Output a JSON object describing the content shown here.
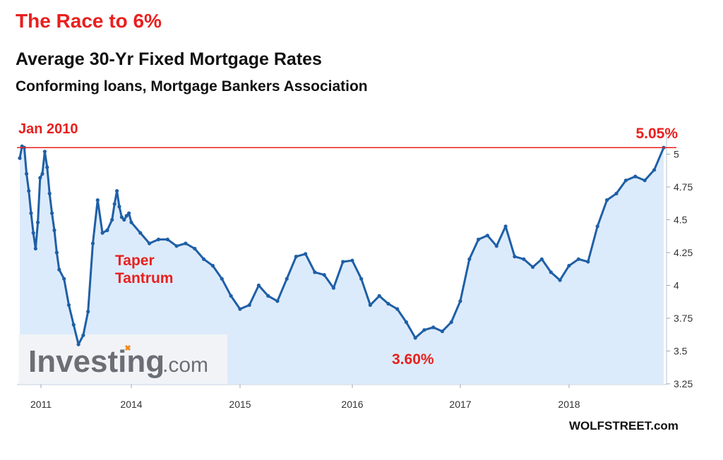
{
  "header": {
    "headline": "The Race to 6%",
    "title": "Average 30-Yr Fixed Mortgage Rates",
    "subtitle": "Conforming loans, Mortgage Bankers Association"
  },
  "credit": "WOLFSTREET.com",
  "colors": {
    "headline": "#e8201e",
    "line": "#1f5fa6",
    "area": "#dcebfb",
    "annotation": "#e8201e"
  },
  "chart_data": {
    "type": "area",
    "xlabel": "",
    "ylabel": "",
    "ylim": [
      3.25,
      5.05
    ],
    "yticks": [
      3.25,
      3.5,
      3.75,
      4,
      4.25,
      4.5,
      4.75,
      5
    ],
    "ytick_labels": [
      "3.25",
      "3.5",
      "3.75",
      "4",
      "4.25",
      "4.5",
      "4.75",
      "5"
    ],
    "xticks": [
      "2011",
      "2014",
      "2015",
      "2016",
      "2017",
      "2018"
    ],
    "grid": false,
    "reference_line": {
      "value": 5.05,
      "label": "5.05%"
    },
    "annotations": [
      {
        "text": "Jan 2010",
        "at": "2010-01",
        "y": 5.06
      },
      {
        "text": "Taper",
        "at": "2013-06",
        "y": 4.15
      },
      {
        "text": "Tantrum",
        "at": "2013-06",
        "y": 4.03
      },
      {
        "text": "3.60%",
        "at": "2016-07",
        "y": 3.6
      }
    ],
    "watermark": {
      "brand": "Investing",
      "suffix": ".com"
    },
    "series": [
      {
        "x": [
          "2010-01",
          "2010-02",
          "2010-03",
          "2010-04",
          "2010-05",
          "2010-06",
          "2010-07",
          "2010-08",
          "2010-09",
          "2010-10",
          "2010-11",
          "2010-12",
          "2011-01",
          "2011-02",
          "2011-03",
          "2011-04",
          "2011-05",
          "2011-06",
          "2011-08",
          "2011-10",
          "2011-12",
          "2012-02",
          "2012-04",
          "2012-06",
          "2012-08",
          "2012-10",
          "2012-12",
          "2013-02",
          "2013-04",
          "2013-05",
          "2013-06",
          "2013-07",
          "2013-08",
          "2013-09",
          "2013-10",
          "2013-11",
          "2013-12",
          "2014-01",
          "2014-02",
          "2014-03",
          "2014-04",
          "2014-05",
          "2014-06",
          "2014-07",
          "2014-08",
          "2014-09",
          "2014-10",
          "2014-11",
          "2014-12",
          "2015-01",
          "2015-02",
          "2015-03",
          "2015-04",
          "2015-05",
          "2015-06",
          "2015-07",
          "2015-08",
          "2015-09",
          "2015-10",
          "2015-11",
          "2015-12",
          "2016-01",
          "2016-02",
          "2016-03",
          "2016-04",
          "2016-05",
          "2016-06",
          "2016-07",
          "2016-08",
          "2016-09",
          "2016-10",
          "2016-11",
          "2016-12",
          "2017-01",
          "2017-02",
          "2017-03",
          "2017-04",
          "2017-05",
          "2017-06",
          "2017-07",
          "2017-08",
          "2017-09",
          "2017-10",
          "2017-11",
          "2017-12",
          "2018-01",
          "2018-02",
          "2018-03",
          "2018-04",
          "2018-05",
          "2018-06",
          "2018-07",
          "2018-08",
          "2018-09",
          "2018-10"
        ],
        "values": [
          4.97,
          5.06,
          5.05,
          4.85,
          4.72,
          4.55,
          4.4,
          4.28,
          4.48,
          4.82,
          4.85,
          5.02,
          4.9,
          4.7,
          4.55,
          4.42,
          4.25,
          4.12,
          4.05,
          3.85,
          3.7,
          3.55,
          3.62,
          3.8,
          4.32,
          4.65,
          4.4,
          4.42,
          4.5,
          4.62,
          4.72,
          4.6,
          4.52,
          4.5,
          4.53,
          4.55,
          4.48,
          4.4,
          4.32,
          4.35,
          4.35,
          4.3,
          4.32,
          4.28,
          4.2,
          4.15,
          4.05,
          3.92,
          3.82,
          3.85,
          4.0,
          3.92,
          3.88,
          4.05,
          4.22,
          4.24,
          4.1,
          4.08,
          3.98,
          4.18,
          4.19,
          4.05,
          3.85,
          3.92,
          3.86,
          3.82,
          3.72,
          3.6,
          3.66,
          3.68,
          3.65,
          3.72,
          3.88,
          4.2,
          4.35,
          4.38,
          4.3,
          4.45,
          4.22,
          4.2,
          4.14,
          4.2,
          4.1,
          4.04,
          4.15,
          4.2,
          4.18,
          4.45,
          4.65,
          4.7,
          4.8,
          4.83,
          4.8,
          4.88,
          5.05
        ]
      }
    ]
  }
}
